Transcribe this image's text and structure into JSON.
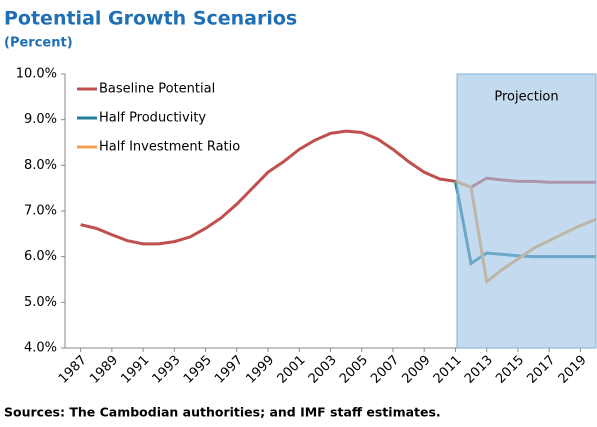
{
  "chart_data": {
    "type": "line",
    "title": "Potential Growth Scenarios",
    "subtitle": "(Percent)",
    "source": "Sources:  The Cambodian authorities; and IMF staff estimates.",
    "x": [
      1987,
      1988,
      1989,
      1990,
      1991,
      1992,
      1993,
      1994,
      1995,
      1996,
      1997,
      1998,
      1999,
      2000,
      2001,
      2002,
      2003,
      2004,
      2005,
      2006,
      2007,
      2008,
      2009,
      2010,
      2011,
      2012,
      2013,
      2014,
      2015,
      2016,
      2017,
      2018,
      2019,
      2020
    ],
    "series": [
      {
        "name": "Baseline Potential",
        "color": "#c0504d",
        "values": [
          6.7,
          6.62,
          6.48,
          6.35,
          6.28,
          6.28,
          6.33,
          6.43,
          6.62,
          6.85,
          7.15,
          7.5,
          7.85,
          8.08,
          8.35,
          8.55,
          8.7,
          8.75,
          8.72,
          8.58,
          8.35,
          8.08,
          7.85,
          7.7,
          7.65,
          7.52,
          7.72,
          7.68,
          7.65,
          7.65,
          7.63,
          7.63,
          7.63,
          7.63
        ]
      },
      {
        "name": "Half Productivity",
        "color": "#1f7f99",
        "values": [
          null,
          null,
          null,
          null,
          null,
          null,
          null,
          null,
          null,
          null,
          null,
          null,
          null,
          null,
          null,
          null,
          null,
          null,
          null,
          null,
          null,
          null,
          null,
          null,
          7.65,
          5.85,
          6.08,
          6.05,
          6.02,
          6.0,
          6.0,
          6.0,
          6.0,
          6.0
        ]
      },
      {
        "name": "Half Investment Ratio",
        "color": "#f0a050",
        "values": [
          null,
          null,
          null,
          null,
          null,
          null,
          null,
          null,
          null,
          null,
          null,
          null,
          null,
          null,
          null,
          null,
          null,
          null,
          null,
          null,
          null,
          null,
          null,
          null,
          7.65,
          7.52,
          5.45,
          5.72,
          5.95,
          6.18,
          6.35,
          6.52,
          6.68,
          6.82
        ]
      }
    ],
    "shade": {
      "label": "Projection",
      "from": 2011.1,
      "to": 2020
    },
    "xlim": [
      1986,
      2020
    ],
    "xticks": [
      1987,
      1989,
      1991,
      1993,
      1995,
      1997,
      1999,
      2001,
      2003,
      2005,
      2007,
      2009,
      2011,
      2013,
      2015,
      2017,
      2019
    ],
    "ylim": [
      4,
      10
    ],
    "yticks": [
      {
        "value": 4,
        "label": "4.0%"
      },
      {
        "value": 5,
        "label": "5.0%"
      },
      {
        "value": 6,
        "label": "6.0%"
      },
      {
        "value": 7,
        "label": "7.0%"
      },
      {
        "value": 8,
        "label": "8.0%"
      },
      {
        "value": 9,
        "label": "9.0%"
      },
      {
        "value": 10,
        "label": "10.0%"
      }
    ],
    "legend": "upper-left"
  }
}
